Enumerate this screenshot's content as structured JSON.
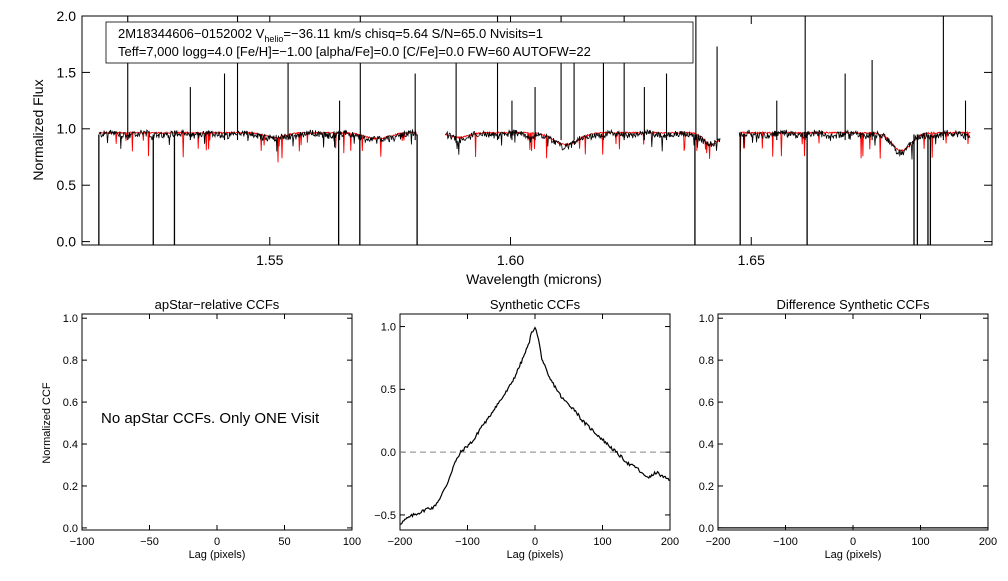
{
  "chart_data": [
    {
      "type": "line",
      "id": "spectrum",
      "header_line1_parts": [
        "2M18344606−0152002  V",
        "helio",
        "=−36.11 km/s  chisq=5.64  S/N=65.0  Nvisits=1"
      ],
      "header_line2": "Teff=7,000 logg=4.0 [Fe/H]=−1.00 [alpha/Fe]=0.0 [C/Fe]=0.0 FW=60 AUTOFW=22",
      "xlabel": "Wavelength (microns)",
      "ylabel": "Normalized Flux",
      "xlim": [
        1.511,
        1.7
      ],
      "ylim": [
        -0.03,
        2.0
      ],
      "xticks": [
        "1.55",
        "1.60",
        "1.65"
      ],
      "xtick_values": [
        1.55,
        1.6,
        1.65
      ],
      "yticks": [
        "0.0",
        "0.5",
        "1.0",
        "1.5",
        "2.0"
      ],
      "ytick_values": [
        0.0,
        0.5,
        1.0,
        1.5,
        2.0
      ],
      "chips": [
        [
          1.5145,
          1.5805
        ],
        [
          1.5865,
          1.6435
        ],
        [
          1.6475,
          1.6955
        ]
      ],
      "series": [
        {
          "name": "observed",
          "color": "#000000",
          "continuum": 0.95
        },
        {
          "name": "model",
          "color": "#ff0000",
          "continuum": 0.965
        }
      ],
      "absorption_features": [
        {
          "center": 1.6115,
          "depth": 0.1,
          "width": 0.0025
        },
        {
          "center": 1.5893,
          "depth": 0.04,
          "width": 0.002
        },
        {
          "center": 1.6418,
          "depth": 0.1,
          "width": 0.0015
        },
        {
          "center": 1.6812,
          "depth": 0.15,
          "width": 0.002
        },
        {
          "center": 1.5723,
          "depth": 0.05,
          "width": 0.0025
        },
        {
          "center": 1.5512,
          "depth": 0.04,
          "width": 0.002
        }
      ],
      "sky_spikes_down": [
        1.5145,
        1.5258,
        1.5302,
        1.5643,
        1.5687,
        1.5806,
        1.6383,
        1.6616,
        1.6477,
        1.6838,
        1.6845,
        1.6867,
        1.6872
      ],
      "sky_spikes_up": [
        1.5205,
        1.5335,
        1.5406,
        1.5433,
        1.5538,
        1.5645,
        1.5688,
        1.5802,
        1.5887,
        1.5973,
        1.6003,
        1.6051,
        1.6105,
        1.6132,
        1.6193,
        1.6236,
        1.6278,
        1.6324,
        1.6385,
        1.6429,
        1.6553,
        1.6612,
        1.6695,
        1.6751,
        1.6899,
        1.6945
      ]
    },
    {
      "type": "line",
      "id": "apstar",
      "title": "apStar−relative CCFs",
      "xlabel": "Lag (pixels)",
      "ylabel": "Normalized CCF",
      "xlim": [
        -100,
        100
      ],
      "ylim": [
        -0.01,
        1.02
      ],
      "xticks": [
        "−100",
        "−50",
        "0",
        "50",
        "100"
      ],
      "xtick_values": [
        -100,
        -50,
        0,
        50,
        100
      ],
      "yticks": [
        "0.0",
        "0.2",
        "0.4",
        "0.6",
        "0.8",
        "1.0"
      ],
      "ytick_values": [
        0,
        0.2,
        0.4,
        0.6,
        0.8,
        1.0
      ],
      "annotation": "No apStar CCFs.  Only ONE Visit"
    },
    {
      "type": "line",
      "id": "synthetic",
      "title": "Synthetic CCFs",
      "xlabel": "Lag (pixels)",
      "xlim": [
        -200,
        200
      ],
      "ylim": [
        -0.62,
        1.1
      ],
      "xticks": [
        "−200",
        "−100",
        "0",
        "100",
        "200"
      ],
      "xtick_values": [
        -200,
        -100,
        0,
        100,
        200
      ],
      "yticks": [
        "−0.5",
        "0.0",
        "0.5",
        "1.0"
      ],
      "ytick_values": [
        -0.5,
        0,
        0.5,
        1.0
      ],
      "zero_line": 0.0,
      "x": [
        -200,
        -190,
        -180,
        -170,
        -160,
        -150,
        -140,
        -130,
        -120,
        -110,
        -100,
        -90,
        -80,
        -70,
        -60,
        -50,
        -40,
        -30,
        -20,
        -10,
        -5,
        0,
        5,
        10,
        20,
        30,
        40,
        50,
        60,
        70,
        80,
        90,
        100,
        110,
        120,
        130,
        140,
        150,
        160,
        170,
        180,
        190,
        200
      ],
      "y": [
        -0.57,
        -0.53,
        -0.5,
        -0.48,
        -0.45,
        -0.44,
        -0.36,
        -0.25,
        -0.1,
        0.0,
        0.05,
        0.1,
        0.2,
        0.26,
        0.35,
        0.42,
        0.5,
        0.6,
        0.72,
        0.85,
        0.95,
        1.0,
        0.9,
        0.75,
        0.6,
        0.52,
        0.43,
        0.38,
        0.33,
        0.25,
        0.2,
        0.15,
        0.1,
        0.05,
        0.0,
        -0.05,
        -0.1,
        -0.12,
        -0.18,
        -0.2,
        -0.16,
        -0.2,
        -0.22
      ]
    },
    {
      "type": "line",
      "id": "difference",
      "title": "Difference Synthetic CCFs",
      "xlabel": "Lag (pixels)",
      "xlim": [
        -200,
        200
      ],
      "ylim": [
        -0.01,
        1.02
      ],
      "xticks": [
        "−200",
        "−100",
        "0",
        "100",
        "200"
      ],
      "xtick_values": [
        -200,
        -100,
        0,
        100,
        200
      ],
      "yticks": [
        "0.0",
        "0.2",
        "0.4",
        "0.6",
        "0.8",
        "1.0"
      ],
      "ytick_values": [
        0,
        0.2,
        0.4,
        0.6,
        0.8,
        1.0
      ],
      "x": [
        -200,
        200
      ],
      "y": [
        0.0,
        0.0
      ]
    }
  ]
}
